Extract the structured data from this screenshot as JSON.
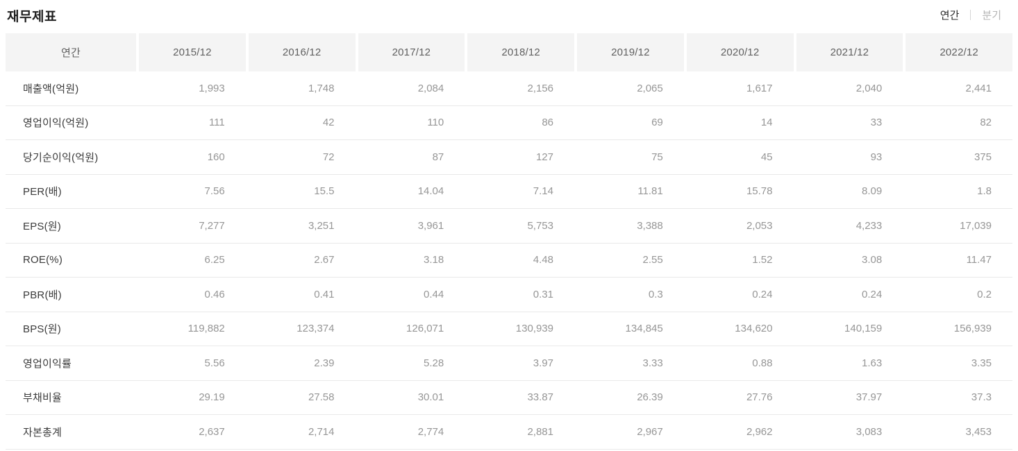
{
  "page": {
    "title": "재무제표"
  },
  "toggle": {
    "annual_label": "연간",
    "quarterly_label": "분기"
  },
  "table": {
    "header": [
      "연간",
      "2015/12",
      "2016/12",
      "2017/12",
      "2018/12",
      "2019/12",
      "2020/12",
      "2021/12",
      "2022/12"
    ],
    "rows": [
      {
        "label": "매출액(억원)",
        "values": [
          "1,993",
          "1,748",
          "2,084",
          "2,156",
          "2,065",
          "1,617",
          "2,040",
          "2,441"
        ]
      },
      {
        "label": "영업이익(억원)",
        "values": [
          "111",
          "42",
          "110",
          "86",
          "69",
          "14",
          "33",
          "82"
        ]
      },
      {
        "label": "당기순이익(억원)",
        "values": [
          "160",
          "72",
          "87",
          "127",
          "75",
          "45",
          "93",
          "375"
        ]
      },
      {
        "label": "PER(배)",
        "values": [
          "7.56",
          "15.5",
          "14.04",
          "7.14",
          "11.81",
          "15.78",
          "8.09",
          "1.8"
        ]
      },
      {
        "label": "EPS(원)",
        "values": [
          "7,277",
          "3,251",
          "3,961",
          "5,753",
          "3,388",
          "2,053",
          "4,233",
          "17,039"
        ]
      },
      {
        "label": "ROE(%)",
        "values": [
          "6.25",
          "2.67",
          "3.18",
          "4.48",
          "2.55",
          "1.52",
          "3.08",
          "11.47"
        ]
      },
      {
        "label": "PBR(배)",
        "values": [
          "0.46",
          "0.41",
          "0.44",
          "0.31",
          "0.3",
          "0.24",
          "0.24",
          "0.2"
        ]
      },
      {
        "label": "BPS(원)",
        "values": [
          "119,882",
          "123,374",
          "126,071",
          "130,939",
          "134,845",
          "134,620",
          "140,159",
          "156,939"
        ]
      },
      {
        "label": "영업이익률",
        "values": [
          "5.56",
          "2.39",
          "5.28",
          "3.97",
          "3.33",
          "0.88",
          "1.63",
          "3.35"
        ]
      },
      {
        "label": "부채비율",
        "values": [
          "29.19",
          "27.58",
          "30.01",
          "33.87",
          "26.39",
          "27.76",
          "37.97",
          "37.3"
        ]
      },
      {
        "label": "자본총계",
        "values": [
          "2,637",
          "2,714",
          "2,774",
          "2,881",
          "2,967",
          "2,962",
          "3,083",
          "3,453"
        ]
      }
    ]
  },
  "colors": {
    "header_bg": "#f4f4f4",
    "header_text": "#5f5f5f",
    "label_text": "#3a3a3a",
    "value_text": "#969696",
    "row_divider": "#e9e9e9",
    "toggle_selected": "#2b2b2b",
    "toggle_unselected": "#b5b5b5"
  }
}
